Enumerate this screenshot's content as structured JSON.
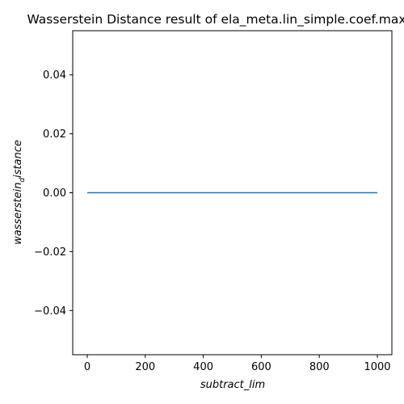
{
  "chart_data": {
    "type": "line",
    "title": "Wasserstein Distance result of ela_meta.lin_simple.coef.max",
    "xlabel": "subtract_lim",
    "ylabel_parts": {
      "base": "wasserstein",
      "sub": "d",
      "rest": "istance"
    },
    "xlim": [
      -50,
      1050
    ],
    "ylim": [
      -0.055,
      0.055
    ],
    "xticks": [
      0,
      200,
      400,
      600,
      800,
      1000
    ],
    "xtick_labels": [
      "0",
      "200",
      "400",
      "600",
      "800",
      "1000"
    ],
    "yticks": [
      0.04,
      0.02,
      0.0,
      -0.02,
      -0.04
    ],
    "ytick_labels": [
      "0.04",
      "0.02",
      "0.00",
      "−0.02",
      "−0.04"
    ],
    "grid": false,
    "series": [
      {
        "color": "#1f77b4",
        "x": [
          0,
          1000
        ],
        "y": [
          0.0,
          0.0
        ]
      }
    ]
  }
}
